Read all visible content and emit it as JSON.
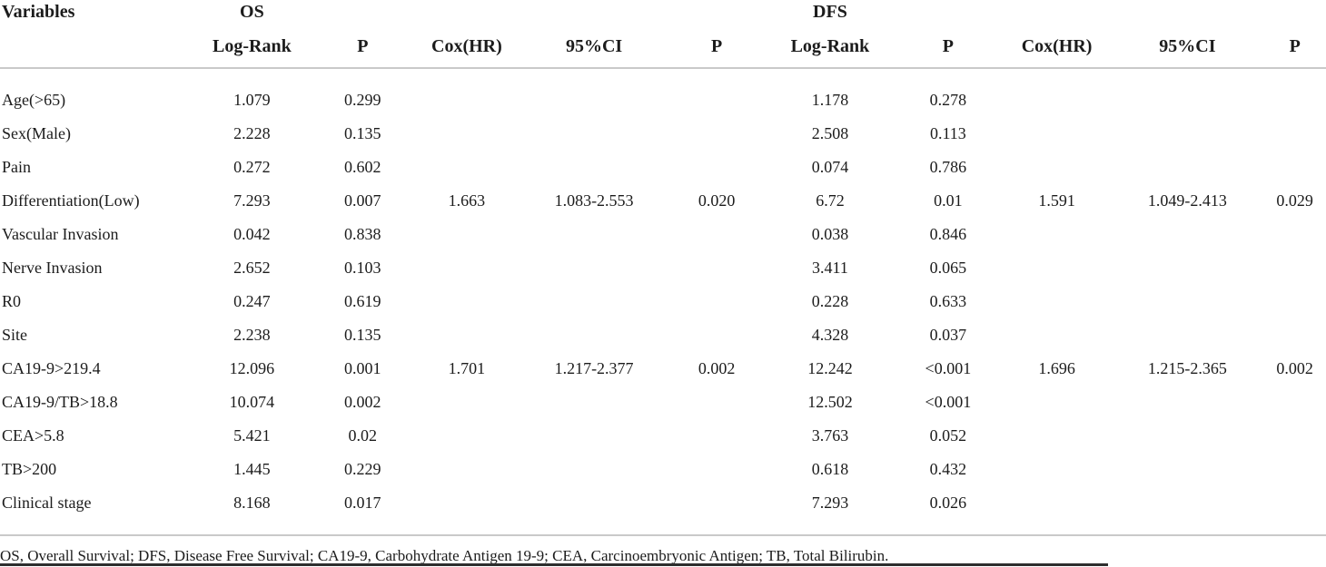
{
  "table": {
    "group_headers": {
      "variables": "Variables",
      "os": "OS",
      "dfs": "DFS"
    },
    "sub_headers": [
      "Log-Rank",
      "P",
      "Cox(HR)",
      "95%CI",
      "P",
      "Log-Rank",
      "P",
      "Cox(HR)",
      "95%CI",
      "P"
    ],
    "rows": [
      [
        "Age(>65)",
        "1.079",
        "0.299",
        "",
        "",
        "",
        "1.178",
        "0.278",
        "",
        "",
        ""
      ],
      [
        "Sex(Male)",
        "2.228",
        "0.135",
        "",
        "",
        "",
        "2.508",
        "0.113",
        "",
        "",
        ""
      ],
      [
        "Pain",
        "0.272",
        "0.602",
        "",
        "",
        "",
        "0.074",
        "0.786",
        "",
        "",
        ""
      ],
      [
        "Differentiation(Low)",
        "7.293",
        "0.007",
        "1.663",
        "1.083-2.553",
        "0.020",
        "6.72",
        "0.01",
        "1.591",
        "1.049-2.413",
        "0.029"
      ],
      [
        "Vascular Invasion",
        "0.042",
        "0.838",
        "",
        "",
        "",
        "0.038",
        "0.846",
        "",
        "",
        ""
      ],
      [
        "Nerve Invasion",
        "2.652",
        "0.103",
        "",
        "",
        "",
        "3.411",
        "0.065",
        "",
        "",
        ""
      ],
      [
        "R0",
        "0.247",
        "0.619",
        "",
        "",
        "",
        "0.228",
        "0.633",
        "",
        "",
        ""
      ],
      [
        "Site",
        "2.238",
        "0.135",
        "",
        "",
        "",
        "4.328",
        "0.037",
        "",
        "",
        ""
      ],
      [
        "CA19-9>219.4",
        "12.096",
        "0.001",
        "1.701",
        "1.217-2.377",
        "0.002",
        "12.242",
        "<0.001",
        "1.696",
        "1.215-2.365",
        "0.002"
      ],
      [
        "CA19-9/TB>18.8",
        "10.074",
        "0.002",
        "",
        "",
        "",
        "12.502",
        "<0.001",
        "",
        "",
        ""
      ],
      [
        "CEA>5.8",
        "5.421",
        "0.02",
        "",
        "",
        "",
        "3.763",
        "0.052",
        "",
        "",
        ""
      ],
      [
        "TB>200",
        "1.445",
        "0.229",
        "",
        "",
        "",
        "0.618",
        "0.432",
        "",
        "",
        ""
      ],
      [
        "Clinical stage",
        "8.168",
        "0.017",
        "",
        "",
        "",
        "7.293",
        "0.026",
        "",
        "",
        ""
      ]
    ],
    "footnote": "OS, Overall Survival; DFS, Disease Free Survival; CA19-9, Carbohydrate Antigen 19-9; CEA, Carcinoembryonic Antigen; TB, Total Bilirubin."
  },
  "colors": {
    "text": "#1c1c1c",
    "rule_light": "#c9c9c9",
    "rule_dark": "#2e2e2e"
  }
}
